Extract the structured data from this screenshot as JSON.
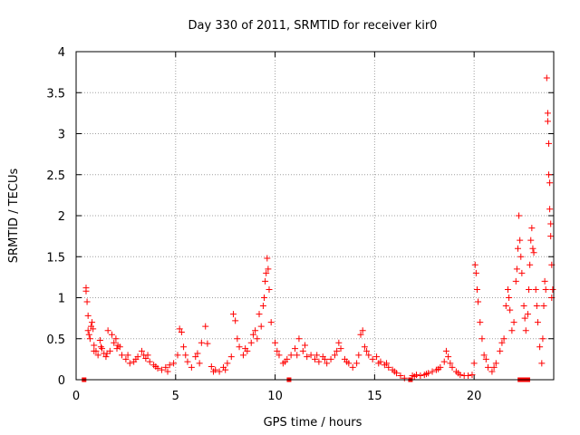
{
  "chart_data": {
    "type": "scatter",
    "title": "Day 330 of 2011, SRMTID for receiver kir0",
    "xlabel": "GPS time / hours",
    "ylabel": "SRMTID / TECUs",
    "xlim": [
      0,
      24
    ],
    "ylim": [
      0,
      4
    ],
    "xticks": [
      0,
      5,
      10,
      15,
      20
    ],
    "yticks": [
      0,
      0.5,
      1,
      1.5,
      2,
      2.5,
      3,
      3.5,
      4
    ],
    "xtick_labels": [
      "0",
      "5",
      "10",
      "15",
      "20"
    ],
    "ytick_labels": [
      "0",
      "0.5",
      "1",
      "1.5",
      "2",
      "2.5",
      "3",
      "3.5",
      "4"
    ],
    "grid": true,
    "marker": "+",
    "color": "#ff0000",
    "series": [
      {
        "name": "kir0",
        "points": [
          [
            0.5,
            1.12
          ],
          [
            0.5,
            1.08
          ],
          [
            0.55,
            0.95
          ],
          [
            0.6,
            0.78
          ],
          [
            0.6,
            0.6
          ],
          [
            0.65,
            0.55
          ],
          [
            0.7,
            0.5
          ],
          [
            0.75,
            0.65
          ],
          [
            0.8,
            0.7
          ],
          [
            0.85,
            0.62
          ],
          [
            0.9,
            0.42
          ],
          [
            1.0,
            0.35
          ],
          [
            1.1,
            0.3
          ],
          [
            1.2,
            0.48
          ],
          [
            1.3,
            0.38
          ],
          [
            1.4,
            0.32
          ],
          [
            1.5,
            0.28
          ],
          [
            1.6,
            0.6
          ],
          [
            1.7,
            0.35
          ],
          [
            1.8,
            0.55
          ],
          [
            1.9,
            0.45
          ],
          [
            2.0,
            0.5
          ],
          [
            2.1,
            0.42
          ],
          [
            2.2,
            0.4
          ],
          [
            2.3,
            0.3
          ],
          [
            2.5,
            0.25
          ],
          [
            2.7,
            0.2
          ],
          [
            2.9,
            0.22
          ],
          [
            3.1,
            0.28
          ],
          [
            3.3,
            0.35
          ],
          [
            3.4,
            0.3
          ],
          [
            3.5,
            0.26
          ],
          [
            3.7,
            0.22
          ],
          [
            3.9,
            0.18
          ],
          [
            4.1,
            0.14
          ],
          [
            4.3,
            0.12
          ],
          [
            4.5,
            0.15
          ],
          [
            4.7,
            0.18
          ],
          [
            4.9,
            0.2
          ],
          [
            5.1,
            0.3
          ],
          [
            5.2,
            0.62
          ],
          [
            5.3,
            0.58
          ],
          [
            5.4,
            0.4
          ],
          [
            5.6,
            0.22
          ],
          [
            5.8,
            0.15
          ],
          [
            6.0,
            0.28
          ],
          [
            6.1,
            0.32
          ],
          [
            6.3,
            0.45
          ],
          [
            6.5,
            0.65
          ],
          [
            6.6,
            0.44
          ],
          [
            6.8,
            0.16
          ],
          [
            7.0,
            0.12
          ],
          [
            7.2,
            0.1
          ],
          [
            7.4,
            0.15
          ],
          [
            7.6,
            0.2
          ],
          [
            7.8,
            0.28
          ],
          [
            7.9,
            0.8
          ],
          [
            8.0,
            0.72
          ],
          [
            8.2,
            0.4
          ],
          [
            8.4,
            0.3
          ],
          [
            8.6,
            0.35
          ],
          [
            8.8,
            0.45
          ],
          [
            9.0,
            0.6
          ],
          [
            9.2,
            0.8
          ],
          [
            9.4,
            0.9
          ],
          [
            9.5,
            1.2
          ],
          [
            9.6,
            1.48
          ],
          [
            9.65,
            1.35
          ],
          [
            9.7,
            1.1
          ],
          [
            9.8,
            0.7
          ],
          [
            10.0,
            0.45
          ],
          [
            10.2,
            0.3
          ],
          [
            10.4,
            0.2
          ],
          [
            10.6,
            0.25
          ],
          [
            10.8,
            0.3
          ],
          [
            11.0,
            0.38
          ],
          [
            11.2,
            0.5
          ],
          [
            11.4,
            0.35
          ],
          [
            11.6,
            0.28
          ],
          [
            11.8,
            0.3
          ],
          [
            12.0,
            0.25
          ],
          [
            12.2,
            0.22
          ],
          [
            12.4,
            0.28
          ],
          [
            12.6,
            0.2
          ],
          [
            12.8,
            0.25
          ],
          [
            13.0,
            0.3
          ],
          [
            13.2,
            0.45
          ],
          [
            13.3,
            0.38
          ],
          [
            13.5,
            0.25
          ],
          [
            13.7,
            0.2
          ],
          [
            13.9,
            0.15
          ],
          [
            14.1,
            0.2
          ],
          [
            14.3,
            0.55
          ],
          [
            14.4,
            0.6
          ],
          [
            14.5,
            0.4
          ],
          [
            14.7,
            0.3
          ],
          [
            14.9,
            0.25
          ],
          [
            15.1,
            0.28
          ],
          [
            15.3,
            0.22
          ],
          [
            15.5,
            0.18
          ],
          [
            15.7,
            0.15
          ],
          [
            15.9,
            0.12
          ],
          [
            16.1,
            0.08
          ],
          [
            16.3,
            0.05
          ],
          [
            16.5,
            0.02
          ],
          [
            16.9,
            0.05
          ],
          [
            17.1,
            0.06
          ],
          [
            17.3,
            0.05
          ],
          [
            17.5,
            0.06
          ],
          [
            17.7,
            0.08
          ],
          [
            17.9,
            0.1
          ],
          [
            18.1,
            0.12
          ],
          [
            18.3,
            0.15
          ],
          [
            18.5,
            0.22
          ],
          [
            18.6,
            0.35
          ],
          [
            18.7,
            0.28
          ],
          [
            18.9,
            0.15
          ],
          [
            19.1,
            0.1
          ],
          [
            19.3,
            0.06
          ],
          [
            19.5,
            0.05
          ],
          [
            19.7,
            0.05
          ],
          [
            19.9,
            0.06
          ],
          [
            20.0,
            0.2
          ],
          [
            20.05,
            1.4
          ],
          [
            20.1,
            1.3
          ],
          [
            20.15,
            1.1
          ],
          [
            20.2,
            0.95
          ],
          [
            20.3,
            0.7
          ],
          [
            20.4,
            0.5
          ],
          [
            20.5,
            0.3
          ],
          [
            20.7,
            0.15
          ],
          [
            20.9,
            0.1
          ],
          [
            21.1,
            0.2
          ],
          [
            21.3,
            0.35
          ],
          [
            21.5,
            0.5
          ],
          [
            21.6,
            0.9
          ],
          [
            21.7,
            1.1
          ],
          [
            21.8,
            0.85
          ],
          [
            21.9,
            0.6
          ],
          [
            22.0,
            0.7
          ],
          [
            22.1,
            1.2
          ],
          [
            22.2,
            1.6
          ],
          [
            22.25,
            2.0
          ],
          [
            22.3,
            1.7
          ],
          [
            22.4,
            1.3
          ],
          [
            22.5,
            0.9
          ],
          [
            22.6,
            0.6
          ],
          [
            22.7,
            0.8
          ],
          [
            22.8,
            1.4
          ],
          [
            22.85,
            1.7
          ],
          [
            22.9,
            1.85
          ],
          [
            23.0,
            1.55
          ],
          [
            23.1,
            1.1
          ],
          [
            23.2,
            0.7
          ],
          [
            23.3,
            0.4
          ],
          [
            23.4,
            0.2
          ],
          [
            23.5,
            0.9
          ],
          [
            23.55,
            1.2
          ],
          [
            23.6,
            1.1
          ],
          [
            23.65,
            3.68
          ],
          [
            23.7,
            3.25
          ],
          [
            23.7,
            3.15
          ],
          [
            23.75,
            2.88
          ],
          [
            23.75,
            2.5
          ],
          [
            23.8,
            2.4
          ],
          [
            23.8,
            2.08
          ],
          [
            23.85,
            1.9
          ],
          [
            23.85,
            1.75
          ],
          [
            23.9,
            1.4
          ],
          [
            23.9,
            1.0
          ],
          [
            0.9,
            0.35
          ],
          [
            1.25,
            0.4
          ],
          [
            1.55,
            0.32
          ],
          [
            2.05,
            0.38
          ],
          [
            2.6,
            0.3
          ],
          [
            3.0,
            0.25
          ],
          [
            3.6,
            0.3
          ],
          [
            4.0,
            0.16
          ],
          [
            4.6,
            0.1
          ],
          [
            5.5,
            0.3
          ],
          [
            6.2,
            0.2
          ],
          [
            6.9,
            0.1
          ],
          [
            7.5,
            0.12
          ],
          [
            8.1,
            0.5
          ],
          [
            8.5,
            0.38
          ],
          [
            8.9,
            0.55
          ],
          [
            9.1,
            0.5
          ],
          [
            9.3,
            0.65
          ],
          [
            9.45,
            1.0
          ],
          [
            9.55,
            1.3
          ],
          [
            10.1,
            0.35
          ],
          [
            10.5,
            0.22
          ],
          [
            11.1,
            0.3
          ],
          [
            11.5,
            0.42
          ],
          [
            12.1,
            0.3
          ],
          [
            12.5,
            0.25
          ],
          [
            13.1,
            0.35
          ],
          [
            13.6,
            0.22
          ],
          [
            14.2,
            0.3
          ],
          [
            14.6,
            0.35
          ],
          [
            15.2,
            0.2
          ],
          [
            15.6,
            0.2
          ],
          [
            16.0,
            0.1
          ],
          [
            17.0,
            0.04
          ],
          [
            17.6,
            0.07
          ],
          [
            18.2,
            0.13
          ],
          [
            18.8,
            0.2
          ],
          [
            19.2,
            0.08
          ],
          [
            20.6,
            0.25
          ],
          [
            21.0,
            0.15
          ],
          [
            21.4,
            0.45
          ],
          [
            21.75,
            1.0
          ],
          [
            22.15,
            1.35
          ],
          [
            22.35,
            1.5
          ],
          [
            22.55,
            0.75
          ],
          [
            22.75,
            1.1
          ],
          [
            22.95,
            1.6
          ],
          [
            23.15,
            0.9
          ],
          [
            23.45,
            0.5
          ],
          [
            23.95,
            1.1
          ]
        ],
        "zero_markers": [
          0.4,
          10.7,
          16.8,
          22.3,
          22.5,
          22.7
        ]
      }
    ]
  }
}
